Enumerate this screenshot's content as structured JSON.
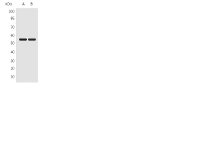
{
  "unit": "kDa",
  "lanes": [
    "A",
    "B"
  ],
  "markers": [
    "100",
    "85",
    "70",
    "60",
    "50",
    "40",
    "30",
    "20",
    "10"
  ]
}
